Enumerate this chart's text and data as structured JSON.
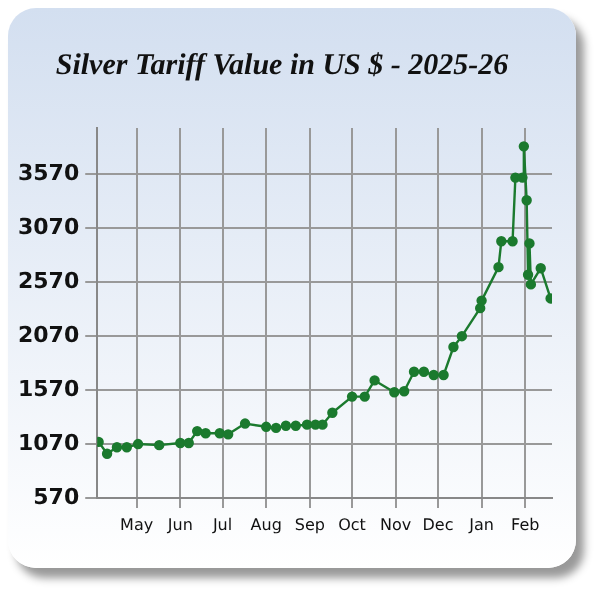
{
  "chart_data": {
    "type": "line",
    "title": "Silver Tariff Value in US $ - 2025-26",
    "x": [
      "2025-04-04",
      "2025-04-10",
      "2025-04-17",
      "2025-04-24",
      "2025-05-02",
      "2025-05-17",
      "2025-06-01",
      "2025-06-07",
      "2025-06-13",
      "2025-06-19",
      "2025-06-29",
      "2025-07-05",
      "2025-07-17",
      "2025-08-01",
      "2025-08-08",
      "2025-08-15",
      "2025-08-22",
      "2025-08-30",
      "2025-09-05",
      "2025-09-10",
      "2025-09-17",
      "2025-10-01",
      "2025-10-10",
      "2025-10-17",
      "2025-10-31",
      "2025-11-07",
      "2025-11-14",
      "2025-11-21",
      "2025-11-28",
      "2025-12-05",
      "2025-12-12",
      "2025-12-18",
      "2025-12-31",
      "2026-01-01",
      "2026-01-13",
      "2026-01-15",
      "2026-01-23",
      "2026-01-25",
      "2026-01-30",
      "2026-01-31",
      "2026-02-02",
      "2026-02-03",
      "2026-02-04",
      "2026-02-05",
      "2026-02-12",
      "2026-02-19"
    ],
    "series": [
      {
        "color": "#1b7a2e",
        "values": [
          1090,
          980,
          1040,
          1040,
          1070,
          1060,
          1080,
          1080,
          1190,
          1170,
          1170,
          1160,
          1260,
          1230,
          1220,
          1240,
          1240,
          1250,
          1250,
          1250,
          1360,
          1510,
          1510,
          1660,
          1550,
          1560,
          1740,
          1740,
          1710,
          1710,
          1970,
          2070,
          2330,
          2400,
          2710,
          2950,
          2950,
          3540,
          3540,
          3830,
          3330,
          2640,
          2930,
          2550,
          2700,
          2420
        ]
      }
    ],
    "xlim": [
      "2025-04-03",
      "2026-02-20"
    ],
    "xticks": [
      {
        "value": "2025-05-01",
        "label": "May"
      },
      {
        "value": "2025-06-01",
        "label": "Jun"
      },
      {
        "value": "2025-07-01",
        "label": "Jul"
      },
      {
        "value": "2025-08-01",
        "label": "Aug"
      },
      {
        "value": "2025-09-01",
        "label": "Sep"
      },
      {
        "value": "2025-10-01",
        "label": "Oct"
      },
      {
        "value": "2025-11-01",
        "label": "Nov"
      },
      {
        "value": "2025-12-01",
        "label": "Dec"
      },
      {
        "value": "2026-01-01",
        "label": "Jan"
      },
      {
        "value": "2026-02-01",
        "label": "Feb"
      }
    ],
    "ylim": [
      570,
      4000
    ],
    "yticks": [
      570,
      1070,
      1570,
      2070,
      2570,
      3070,
      3570
    ],
    "grid": true,
    "legend": false,
    "marker": "circle",
    "line_style": "solid"
  }
}
